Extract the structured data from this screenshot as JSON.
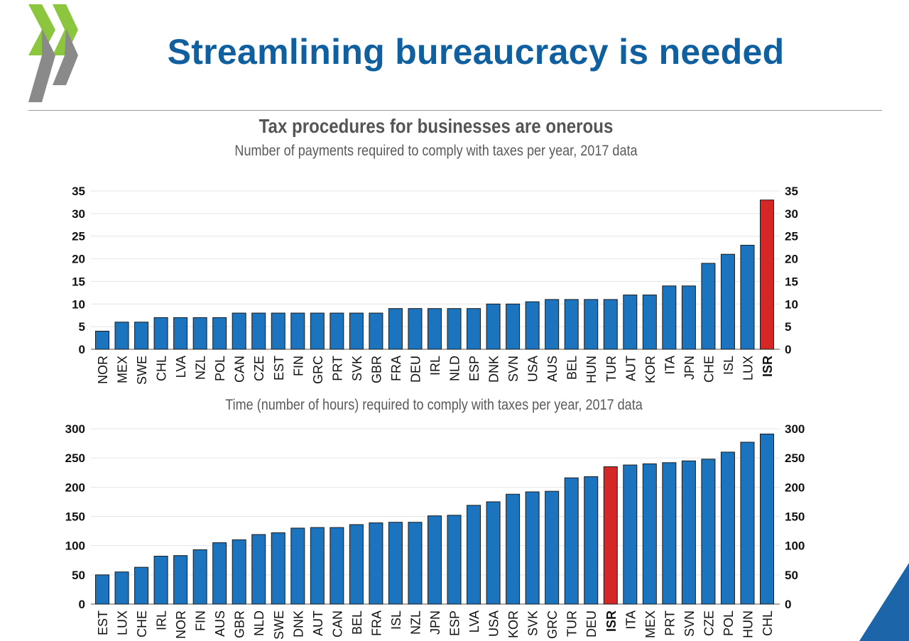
{
  "header": {
    "title": "Streamlining bureaucracy is needed",
    "logo_icon": "oecd-chevron-logo-icon"
  },
  "colors": {
    "title": "#1060a0",
    "bar": "#1b74bd",
    "highlight": "#d62727",
    "logo_green": "#8cc63f",
    "logo_gray": "#8a8a8a",
    "corner": "#1b65a8"
  },
  "chart_title": "Tax procedures for businesses are onerous",
  "chart_data": [
    {
      "type": "bar",
      "subtitle": "Number of payments required to comply with taxes per year, 2017 data",
      "categories": [
        "NOR",
        "MEX",
        "SWE",
        "CHL",
        "LVA",
        "NZL",
        "POL",
        "CAN",
        "CZE",
        "EST",
        "FIN",
        "GRC",
        "PRT",
        "SVK",
        "GBR",
        "FRA",
        "DEU",
        "IRL",
        "NLD",
        "ESP",
        "DNK",
        "SVN",
        "USA",
        "AUS",
        "BEL",
        "HUN",
        "TUR",
        "AUT",
        "KOR",
        "ITA",
        "JPN",
        "CHE",
        "ISL",
        "LUX",
        "ISR"
      ],
      "values": [
        4,
        6,
        6,
        7,
        7,
        7,
        7,
        8,
        8,
        8,
        8,
        8,
        8,
        8,
        8,
        9,
        9,
        9,
        9,
        9,
        10,
        10,
        10.5,
        11,
        11,
        11,
        11,
        12,
        12,
        14,
        14,
        19,
        21,
        23,
        33
      ],
      "highlight": "ISR",
      "ylim": [
        0,
        35
      ],
      "yticks": [
        0,
        5,
        10,
        15,
        20,
        25,
        30,
        35
      ],
      "grid": true,
      "secondary_y_axis": true
    },
    {
      "type": "bar",
      "subtitle": "Time (number of hours) required to comply with taxes per year, 2017 data",
      "categories": [
        "EST",
        "LUX",
        "CHE",
        "IRL",
        "NOR",
        "FIN",
        "AUS",
        "GBR",
        "NLD",
        "SWE",
        "DNK",
        "AUT",
        "CAN",
        "BEL",
        "FRA",
        "ISL",
        "NZL",
        "JPN",
        "ESP",
        "LVA",
        "USA",
        "KOR",
        "SVK",
        "GRC",
        "TUR",
        "DEU",
        "ISR",
        "ITA",
        "MEX",
        "PRT",
        "SVN",
        "CZE",
        "POL",
        "HUN",
        "CHL"
      ],
      "values": [
        50,
        55,
        63,
        82,
        83,
        93,
        105,
        110,
        119,
        122,
        130,
        131,
        131,
        136,
        139,
        140,
        140,
        151,
        152,
        169,
        175,
        188,
        192,
        193,
        216,
        218,
        235,
        238,
        240,
        242,
        245,
        248,
        260,
        277,
        291
      ],
      "highlight": "ISR",
      "ylim": [
        0,
        300
      ],
      "yticks": [
        0,
        50,
        100,
        150,
        200,
        250,
        300
      ],
      "grid": true,
      "secondary_y_axis": true
    }
  ]
}
